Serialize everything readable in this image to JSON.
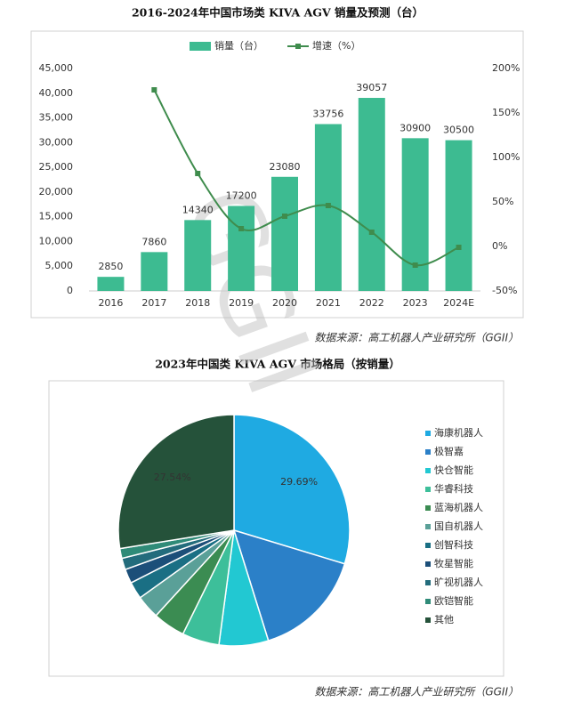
{
  "chart_data": [
    {
      "type": "bar",
      "title": "2016-2024年中国市场类 KIVA AGV 销量及预测（台）",
      "source": "数据来源：高工机器人产业研究所（GGII）",
      "watermark": "GGII",
      "categories": [
        "2016",
        "2017",
        "2018",
        "2019",
        "2020",
        "2021",
        "2022",
        "2023",
        "2024E"
      ],
      "series": [
        {
          "name": "销量（台）",
          "type": "bar",
          "color": "#3dbb91",
          "values": [
            2850,
            7860,
            14340,
            17200,
            23080,
            33756,
            39057,
            30900,
            30500
          ]
        },
        {
          "name": "增速（%）",
          "type": "line",
          "axis": "y2",
          "color": "#3f8c4d",
          "values": [
            null,
            176,
            82,
            20,
            34,
            46,
            16,
            -21,
            -1
          ]
        }
      ],
      "ylim": [
        0,
        45000
      ],
      "yticks": [
        0,
        {
          "value": 5000,
          "label": "5,000"
        },
        {
          "value": 10000,
          "label": "10,000"
        },
        {
          "value": 15000,
          "label": "15,000"
        },
        {
          "value": 20000,
          "label": "20,000"
        },
        {
          "value": 25000,
          "label": "25,000"
        },
        {
          "value": 30000,
          "label": "30,000"
        },
        {
          "value": 35000,
          "label": "35,000"
        },
        {
          "value": 40000,
          "label": "40,000"
        },
        {
          "value": 45000,
          "label": "45,000"
        }
      ],
      "y2lim": [
        -50,
        200
      ],
      "y2ticks": [
        {
          "value": -50,
          "label": "-50%"
        },
        {
          "value": 0,
          "label": "0%"
        },
        {
          "value": 50,
          "label": "50%"
        },
        {
          "value": 100,
          "label": "100%"
        },
        {
          "value": 150,
          "label": "150%"
        },
        {
          "value": 200,
          "label": "200%"
        }
      ],
      "legend": "top"
    },
    {
      "type": "pie",
      "title": "2023年中国类 KIVA AGV 市场格局（按销量）",
      "source": "数据来源：高工机器人产业研究所（GGII）",
      "categories": [
        "海康机器人",
        "极智嘉",
        "快仓智能",
        "华睿科技",
        "蓝海机器人",
        "国自机器人",
        "创智科技",
        "牧星智能",
        "旷视机器人",
        "欧铠智能",
        "其他"
      ],
      "values": [
        29.69,
        15.5,
        6.9,
        5.2,
        4.5,
        3.3,
        2.4,
        2.0,
        1.6,
        1.37,
        27.54
      ],
      "value_labels": [
        "29.69%",
        null,
        null,
        null,
        null,
        null,
        null,
        null,
        null,
        null,
        "27.54%"
      ],
      "colors": [
        "#1faae2",
        "#2b80c8",
        "#22c8d2",
        "#3dbf9a",
        "#3b8c52",
        "#5aa098",
        "#1a6f84",
        "#1c4f79",
        "#236c7c",
        "#2f8b78",
        "#25523a"
      ],
      "legend": "right"
    }
  ]
}
